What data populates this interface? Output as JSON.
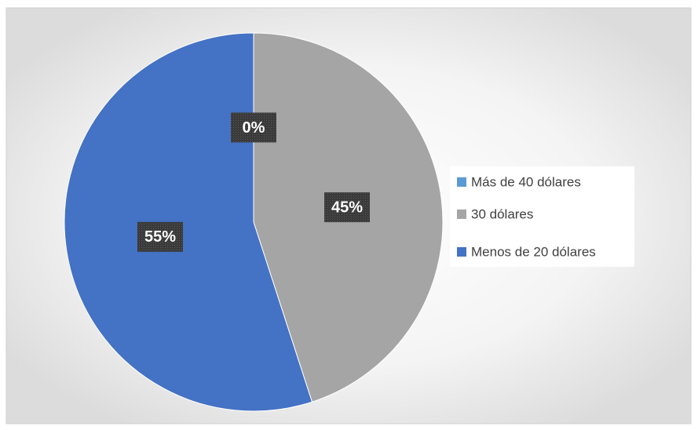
{
  "chart_data": {
    "type": "pie",
    "categories": [
      "Más de 40 dólares",
      "30 dólares",
      "Menos de 20 dólares"
    ],
    "values": [
      0,
      45,
      55
    ],
    "value_labels": [
      "0%",
      "45%",
      "55%"
    ],
    "colors": [
      "#5b9bd5",
      "#a5a5a5",
      "#4472c4"
    ],
    "legend": "right"
  }
}
